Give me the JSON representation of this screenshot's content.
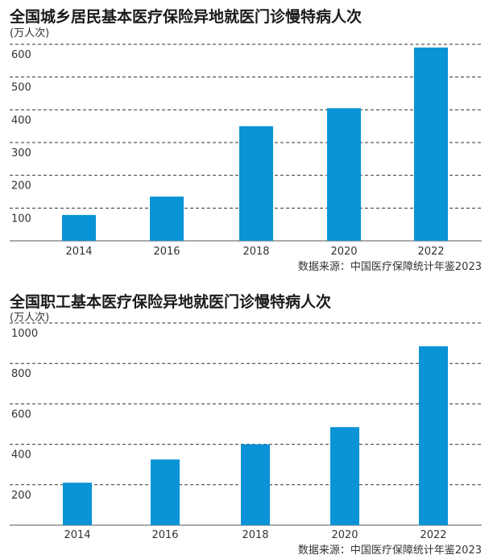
{
  "colors": {
    "bar": "#0a93d6",
    "grid": "#333333",
    "axis": "#555555",
    "text": "#333333"
  },
  "chart_data": [
    {
      "type": "bar",
      "title": "全国城乡居民基本医疗保险异地就医门诊慢特病人次",
      "unit": "(万人次)",
      "source": "数据来源：中国医疗保障统计年鉴2023",
      "categories": [
        "2014",
        "2016",
        "2018",
        "2020",
        "2022"
      ],
      "values": [
        79,
        135,
        350,
        405,
        590
      ],
      "ylim": [
        0,
        600
      ],
      "yticks": [
        100,
        200,
        300,
        400,
        500,
        600
      ],
      "grid": "dashed-horizontal"
    },
    {
      "type": "bar",
      "title": "全国职工基本医疗保险异地就医门诊慢特病人次",
      "unit": "(万人次)",
      "source": "数据来源：中国医疗保障统计年鉴2023",
      "categories": [
        "2014",
        "2016",
        "2018",
        "2020",
        "2022"
      ],
      "values": [
        210,
        325,
        400,
        485,
        885
      ],
      "ylim": [
        0,
        1000
      ],
      "yticks": [
        200,
        400,
        600,
        800,
        1000
      ],
      "grid": "dashed-horizontal"
    }
  ]
}
